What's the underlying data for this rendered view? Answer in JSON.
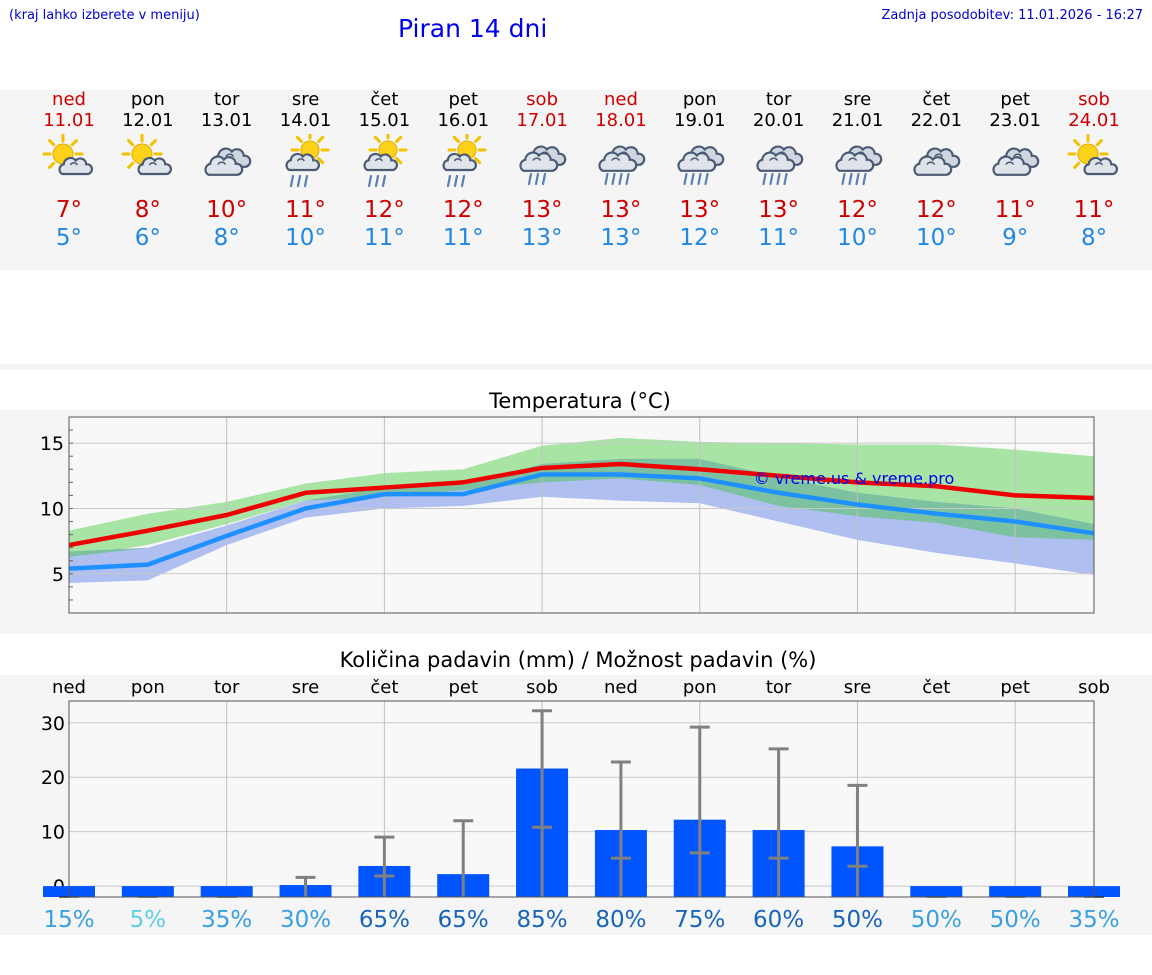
{
  "header": {
    "hint": "(kraj lahko izberete v meniju)",
    "title": "Piran 14 dni",
    "updated": "Zadnja posodobitev: 11.01.2026 - 16:27"
  },
  "days": [
    {
      "name": "ned",
      "date": "11.01",
      "icon": "sun-cloud-icon",
      "tmax": "7°",
      "tmin": "5°",
      "weekend": true
    },
    {
      "name": "pon",
      "date": "12.01",
      "icon": "sun-cloud-icon",
      "tmax": "8°",
      "tmin": "6°",
      "weekend": false
    },
    {
      "name": "tor",
      "date": "13.01",
      "icon": "cloudy-icon",
      "tmax": "10°",
      "tmin": "8°",
      "weekend": false
    },
    {
      "name": "sre",
      "date": "14.01",
      "icon": "sun-cloud-rain-icon",
      "tmax": "11°",
      "tmin": "10°",
      "weekend": false
    },
    {
      "name": "čet",
      "date": "15.01",
      "icon": "sun-cloud-rain-icon",
      "tmax": "12°",
      "tmin": "11°",
      "weekend": false
    },
    {
      "name": "pet",
      "date": "16.01",
      "icon": "sun-cloud-rain-icon",
      "tmax": "12°",
      "tmin": "11°",
      "weekend": false
    },
    {
      "name": "sob",
      "date": "17.01",
      "icon": "cloud-rain-icon",
      "tmax": "13°",
      "tmin": "13°",
      "weekend": true
    },
    {
      "name": "ned",
      "date": "18.01",
      "icon": "cloud-heavy-rain-icon",
      "tmax": "13°",
      "tmin": "13°",
      "weekend": true
    },
    {
      "name": "pon",
      "date": "19.01",
      "icon": "cloud-heavy-rain-icon",
      "tmax": "13°",
      "tmin": "12°",
      "weekend": false
    },
    {
      "name": "tor",
      "date": "20.01",
      "icon": "cloud-heavy-rain-icon",
      "tmax": "13°",
      "tmin": "11°",
      "weekend": false
    },
    {
      "name": "sre",
      "date": "21.01",
      "icon": "cloud-heavy-rain-icon",
      "tmax": "12°",
      "tmin": "10°",
      "weekend": false
    },
    {
      "name": "čet",
      "date": "22.01",
      "icon": "cloudy-icon",
      "tmax": "12°",
      "tmin": "10°",
      "weekend": false
    },
    {
      "name": "pet",
      "date": "23.01",
      "icon": "cloudy-icon",
      "tmax": "11°",
      "tmin": "9°",
      "weekend": false
    },
    {
      "name": "sob",
      "date": "24.01",
      "icon": "sun-cloud-icon",
      "tmax": "11°",
      "tmin": "8°",
      "weekend": true
    }
  ],
  "colors": {
    "max_line": "#ee0000",
    "min_line": "#1e90ff",
    "max_band": "#a8e4a4",
    "min_band": "#aebff0",
    "overlap_band": "#7cc2a0",
    "bar": "#0055ff",
    "whisker": "#808080"
  },
  "chart_data": [
    {
      "type": "line",
      "title": "Temperatura (°C)",
      "watermark": "© vreme.us & vreme.pro",
      "ylim": [
        2,
        17
      ],
      "yticks": [
        5,
        10,
        15
      ],
      "x": [
        "11.01",
        "12.01",
        "13.01",
        "14.01",
        "15.01",
        "16.01",
        "17.01",
        "18.01",
        "19.01",
        "20.01",
        "21.01",
        "22.01",
        "23.01",
        "24.01"
      ],
      "series": [
        {
          "name": "max",
          "values": [
            7.2,
            8.3,
            9.5,
            11.2,
            11.6,
            12.0,
            13.1,
            13.4,
            13.0,
            12.5,
            12.0,
            11.7,
            11.0,
            10.8
          ]
        },
        {
          "name": "min",
          "values": [
            5.4,
            5.7,
            7.9,
            10.0,
            11.1,
            11.1,
            12.6,
            12.6,
            12.3,
            11.2,
            10.3,
            9.6,
            9.0,
            8.1
          ]
        }
      ],
      "bands": [
        {
          "name": "max-range",
          "low": [
            6.3,
            7.2,
            8.8,
            10.6,
            10.9,
            11.4,
            12.0,
            12.3,
            11.8,
            10.2,
            9.4,
            8.9,
            7.8,
            7.6
          ],
          "high": [
            8.3,
            9.6,
            10.5,
            11.9,
            12.7,
            13.0,
            14.8,
            15.4,
            15.1,
            15.0,
            14.9,
            14.9,
            14.5,
            14.0
          ]
        },
        {
          "name": "min-range",
          "low": [
            4.3,
            4.5,
            7.2,
            9.3,
            10.0,
            10.2,
            10.9,
            10.6,
            10.4,
            9.0,
            7.6,
            6.6,
            5.8,
            4.9
          ],
          "high": [
            6.7,
            7.0,
            8.7,
            10.6,
            11.6,
            11.8,
            13.4,
            13.8,
            13.8,
            12.4,
            11.2,
            10.5,
            10.0,
            8.8
          ]
        }
      ]
    },
    {
      "type": "bar",
      "title": "Količina padavin (mm) / Možnost padavin (%)",
      "ylim": [
        -2,
        34
      ],
      "yticks": [
        0,
        10,
        20,
        30
      ],
      "categories": [
        "ned",
        "pon",
        "tor",
        "sre",
        "čet",
        "pet",
        "sob",
        "ned",
        "pon",
        "tor",
        "sre",
        "čet",
        "pet",
        "sob"
      ],
      "values": [
        0,
        0,
        0,
        0.2,
        3.7,
        2.2,
        21.6,
        10.3,
        12.2,
        10.3,
        7.3,
        0,
        0,
        0
      ],
      "error_high": [
        0,
        0,
        0,
        1.6,
        9.0,
        12.0,
        32.2,
        22.8,
        29.2,
        25.2,
        18.5,
        0,
        0,
        0
      ],
      "probability": [
        "15%",
        "5%",
        "35%",
        "30%",
        "65%",
        "65%",
        "85%",
        "80%",
        "75%",
        "60%",
        "50%",
        "50%",
        "50%",
        "35%"
      ],
      "probability_colors": [
        "#3aa0dd",
        "#5cd0e8",
        "#3aa0dd",
        "#3aa0dd",
        "#1a64b8",
        "#1a64b8",
        "#1a64b8",
        "#1a64b8",
        "#1a64b8",
        "#1a64b8",
        "#1a64b8",
        "#3aa0dd",
        "#3aa0dd",
        "#3aa0dd"
      ]
    }
  ]
}
